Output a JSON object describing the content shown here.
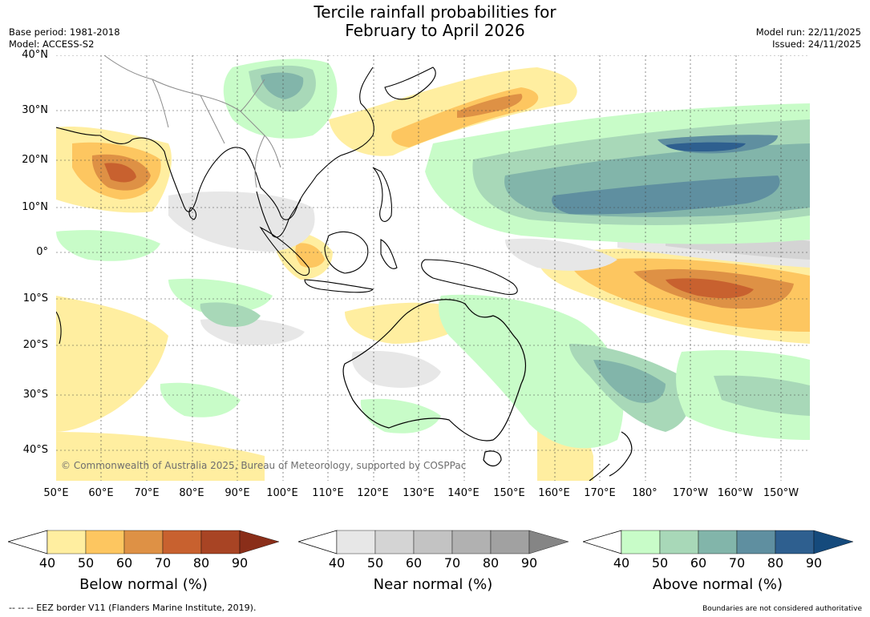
{
  "header": {
    "title_line1": "Tercile rainfall probabilities for",
    "title_line2": "February to April 2026",
    "base_period": "Base period: 1981-2018",
    "model": "Model: ACCESS-S2",
    "model_run": "Model run: 22/11/2025",
    "issued": "Issued: 24/11/2025"
  },
  "map": {
    "lat_labels": [
      "40°N",
      "30°N",
      "20°N",
      "10°N",
      "0°",
      "10°S",
      "20°S",
      "30°S",
      "40°S"
    ],
    "lon_labels": [
      "50°E",
      "60°E",
      "70°E",
      "80°E",
      "90°E",
      "100°E",
      "110°E",
      "120°E",
      "130°E",
      "140°E",
      "150°E",
      "160°E",
      "170°E",
      "180°",
      "170°W",
      "160°W",
      "150°W"
    ],
    "copyright": "© Commonwealth of Australia 2025, Bureau of Meteorology, supported by COSPPac"
  },
  "legends": [
    {
      "title": "Below normal (%)",
      "ticks": [
        "40",
        "50",
        "60",
        "70",
        "80",
        "90"
      ],
      "colors": [
        "#ffeea0",
        "#fdc660",
        "#de9145",
        "#c8612f",
        "#a84424",
        "#8a2e19"
      ]
    },
    {
      "title": "Near normal (%)",
      "ticks": [
        "40",
        "50",
        "60",
        "70",
        "80",
        "90"
      ],
      "colors": [
        "#e7e7e7",
        "#d4d4d4",
        "#c3c3c3",
        "#b1b1b1",
        "#a1a1a1",
        "#858585"
      ]
    },
    {
      "title": "Above normal (%)",
      "ticks": [
        "40",
        "50",
        "60",
        "70",
        "80",
        "90"
      ],
      "colors": [
        "#c8fcc8",
        "#a8d8b8",
        "#82b5aa",
        "#5f8fa0",
        "#2e5f8f",
        "#154a7c"
      ]
    }
  ],
  "footer": {
    "eez_note": "--  --  -- EEZ border V11 (Flanders Marine Institute, 2019).",
    "boundaries_note": "Boundaries are not considered authoritative"
  }
}
